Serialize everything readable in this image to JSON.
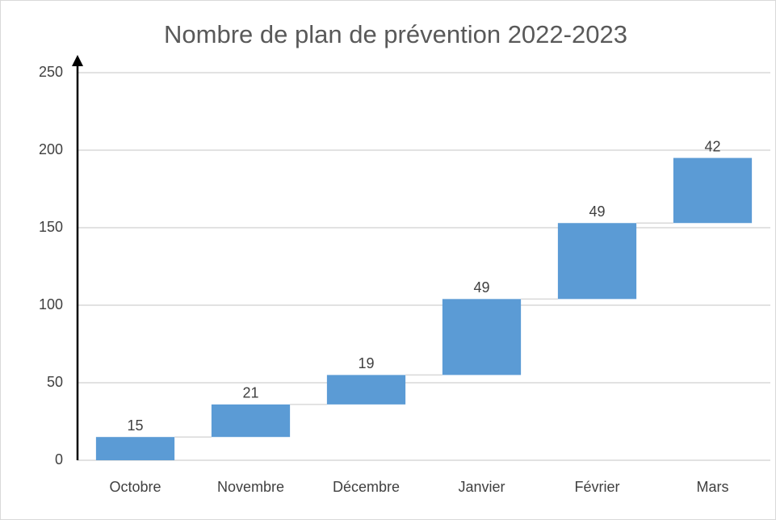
{
  "chart_data": {
    "type": "waterfall",
    "title": "Nombre de plan de prévention 2022-2023",
    "categories": [
      "Octobre",
      "Novembre",
      "Décembre",
      "Janvier",
      "Février",
      "Mars"
    ],
    "values": [
      15,
      21,
      19,
      49,
      49,
      42
    ],
    "color": "#5b9bd5",
    "ylim": [
      0,
      250
    ],
    "yticks": [
      0,
      50,
      100,
      150,
      200,
      250
    ],
    "grid": true
  }
}
